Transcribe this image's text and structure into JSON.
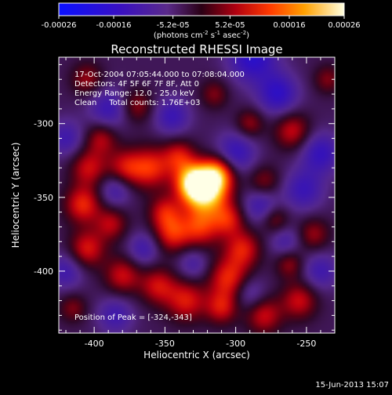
{
  "chart_data": {
    "type": "heatmap",
    "title": "Reconstructed RHESSI Image",
    "xlabel": "Heliocentric X (arcsec)",
    "ylabel": "Heliocentric Y (arcsec)",
    "xlim": [
      -425,
      -230
    ],
    "ylim": [
      -442,
      -255
    ],
    "x_ticks": [
      -400,
      -350,
      -300,
      -250
    ],
    "y_ticks": [
      -300,
      -350,
      -400
    ],
    "colorbar": {
      "min": -0.00026,
      "max": 0.00026,
      "tick_values": [
        -0.00026,
        -0.00016,
        -5.2e-05,
        5.2e-05,
        0.00016,
        0.00026
      ],
      "tick_labels": [
        "-0.00026",
        "-0.00016",
        "-5.2e-05",
        "5.2e-05",
        "0.00016",
        "0.00026"
      ],
      "unit_prefix": "(photons cm",
      "unit_exp1": "-2",
      "unit_mid": " s",
      "unit_exp2": "-1",
      "unit_mid2": " asec",
      "unit_exp3": "-2",
      "unit_suffix": ")"
    },
    "annotations": [
      "17-Oct-2004 07:05:44.000 to 07:08:04.000",
      "Detectors: 4F 5F 6F 7F 8F, Att 0",
      "Energy Range: 12.0 - 25.0 keV",
      "Clean     Total counts: 1.76E+03"
    ],
    "peak_label": "Position of Peak = [-324,-343]",
    "peak": [
      -324,
      -343
    ],
    "blobs": [
      {
        "x": -320,
        "y": -345,
        "a": 1.0,
        "s": 11
      },
      {
        "x": -330,
        "y": -340,
        "a": 0.85,
        "s": 9
      },
      {
        "x": -312,
        "y": -333,
        "a": 0.6,
        "s": 8
      },
      {
        "x": -325,
        "y": -370,
        "a": 0.55,
        "s": 10
      },
      {
        "x": -345,
        "y": -375,
        "a": 0.5,
        "s": 9
      },
      {
        "x": -350,
        "y": -360,
        "a": 0.45,
        "s": 8
      },
      {
        "x": -360,
        "y": -330,
        "a": 0.55,
        "s": 10
      },
      {
        "x": -340,
        "y": -322,
        "a": 0.45,
        "s": 8
      },
      {
        "x": -378,
        "y": -330,
        "a": 0.45,
        "s": 9
      },
      {
        "x": -404,
        "y": -330,
        "a": 0.45,
        "s": 9
      },
      {
        "x": -395,
        "y": -310,
        "a": 0.4,
        "s": 8
      },
      {
        "x": -408,
        "y": -355,
        "a": 0.55,
        "s": 9
      },
      {
        "x": -388,
        "y": -368,
        "a": 0.4,
        "s": 8
      },
      {
        "x": -405,
        "y": -385,
        "a": 0.5,
        "s": 9
      },
      {
        "x": -380,
        "y": -403,
        "a": 0.45,
        "s": 9
      },
      {
        "x": -355,
        "y": -410,
        "a": 0.45,
        "s": 9
      },
      {
        "x": -335,
        "y": -420,
        "a": 0.5,
        "s": 10
      },
      {
        "x": -305,
        "y": -405,
        "a": 0.55,
        "s": 10
      },
      {
        "x": -295,
        "y": -385,
        "a": 0.5,
        "s": 9
      },
      {
        "x": -305,
        "y": -365,
        "a": 0.45,
        "s": 8
      },
      {
        "x": -310,
        "y": -425,
        "a": 0.45,
        "s": 8
      },
      {
        "x": -280,
        "y": -430,
        "a": 0.45,
        "s": 9
      },
      {
        "x": -255,
        "y": -420,
        "a": 0.45,
        "s": 9
      },
      {
        "x": -262,
        "y": -395,
        "a": 0.35,
        "s": 7
      },
      {
        "x": -245,
        "y": -375,
        "a": 0.35,
        "s": 8
      },
      {
        "x": -272,
        "y": -365,
        "a": 0.35,
        "s": 7
      },
      {
        "x": -280,
        "y": -340,
        "a": 0.35,
        "s": 8
      },
      {
        "x": -260,
        "y": -305,
        "a": 0.45,
        "s": 9
      },
      {
        "x": -290,
        "y": -300,
        "a": 0.35,
        "s": 7
      },
      {
        "x": -370,
        "y": -288,
        "a": 0.35,
        "s": 8
      },
      {
        "x": -405,
        "y": -270,
        "a": 0.35,
        "s": 8
      },
      {
        "x": -315,
        "y": -280,
        "a": 0.3,
        "s": 7
      },
      {
        "x": -235,
        "y": -270,
        "a": 0.3,
        "s": 7
      },
      {
        "x": -415,
        "y": -425,
        "a": 0.3,
        "s": 7
      },
      {
        "x": -288,
        "y": -255,
        "a": -0.55,
        "s": 12
      },
      {
        "x": -270,
        "y": -280,
        "a": -0.5,
        "s": 10
      },
      {
        "x": -300,
        "y": -320,
        "a": -0.45,
        "s": 10
      },
      {
        "x": -240,
        "y": -320,
        "a": -0.45,
        "s": 10
      },
      {
        "x": -252,
        "y": -345,
        "a": -0.4,
        "s": 10
      },
      {
        "x": -282,
        "y": -355,
        "a": -0.4,
        "s": 9
      },
      {
        "x": -390,
        "y": -290,
        "a": -0.4,
        "s": 10
      },
      {
        "x": -345,
        "y": -295,
        "a": -0.4,
        "s": 9
      },
      {
        "x": -420,
        "y": -310,
        "a": -0.35,
        "s": 9
      },
      {
        "x": -385,
        "y": -345,
        "a": -0.35,
        "s": 8
      },
      {
        "x": -365,
        "y": -385,
        "a": -0.35,
        "s": 8
      },
      {
        "x": -420,
        "y": -400,
        "a": -0.35,
        "s": 9
      },
      {
        "x": -385,
        "y": -430,
        "a": -0.35,
        "s": 9
      },
      {
        "x": -290,
        "y": -415,
        "a": -0.3,
        "s": 8
      },
      {
        "x": -240,
        "y": -400,
        "a": -0.35,
        "s": 9
      },
      {
        "x": -265,
        "y": -380,
        "a": -0.3,
        "s": 8
      },
      {
        "x": -330,
        "y": -395,
        "a": -0.3,
        "s": 8
      }
    ]
  },
  "footer": {
    "date_label": "15-Jun-2013 15:07"
  }
}
